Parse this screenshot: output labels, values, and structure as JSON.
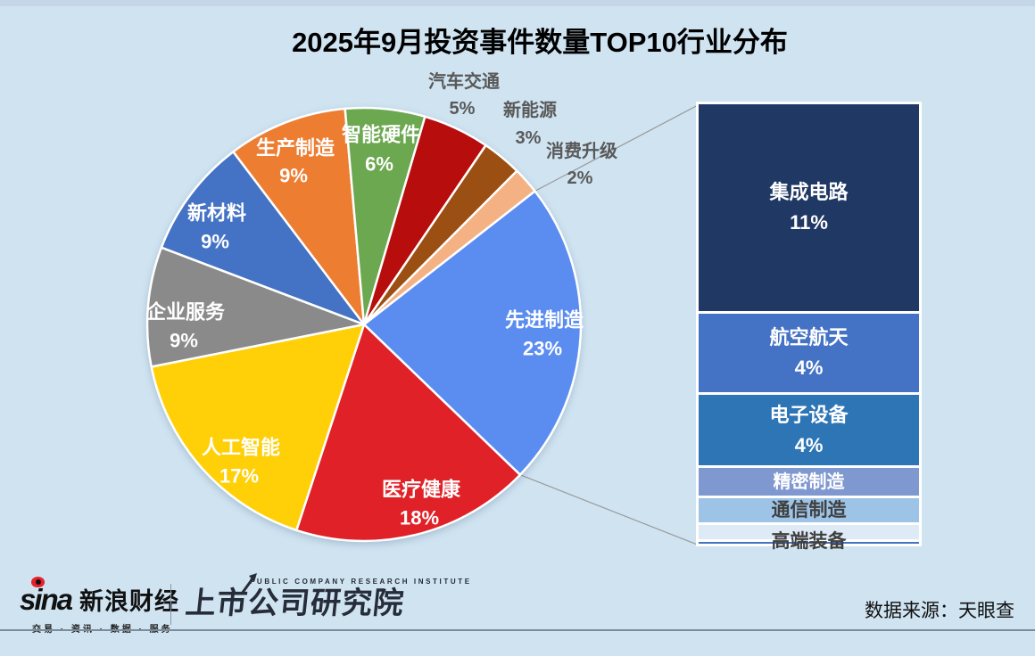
{
  "page": {
    "background": "#CFE3F1"
  },
  "header": {
    "title": "2025年9月投资事件数量TOP10行业分布"
  },
  "chart_data": {
    "type": "pie",
    "subtype": "bar-of-pie",
    "title": "2025年9月投资事件数量TOP10行业分布",
    "unit": "%",
    "legend_position": "none",
    "pie": {
      "start_angle_deg": 52,
      "slices": [
        {
          "label": "先进制造",
          "value": 23,
          "color": "#5B8DF0",
          "label_position": "inside"
        },
        {
          "label": "医疗健康",
          "value": 18,
          "color": "#E02128",
          "label_position": "inside"
        },
        {
          "label": "人工智能",
          "value": 17,
          "color": "#FFD008",
          "label_position": "inside"
        },
        {
          "label": "企业服务",
          "value": 9,
          "color": "#8A8A8A",
          "label_position": "inside"
        },
        {
          "label": "新材料",
          "value": 9,
          "color": "#4472C4",
          "label_position": "inside"
        },
        {
          "label": "生产制造",
          "value": 9,
          "color": "#ED7D31",
          "label_position": "inside"
        },
        {
          "label": "智能硬件",
          "value": 6,
          "color": "#6BA84F",
          "label_position": "inside"
        },
        {
          "label": "汽车交通",
          "value": 5,
          "color": "#B70D0D",
          "label_position": "outside"
        },
        {
          "label": "新能源",
          "value": 3,
          "color": "#9C4F13",
          "label_position": "outside"
        },
        {
          "label": "消费升级",
          "value": 2,
          "color": "#F4B183",
          "label_position": "outside"
        }
      ]
    },
    "breakout_bar": {
      "breakout_of": "先进制造",
      "blocks": [
        {
          "label": "集成电路",
          "display": "11%",
          "value": 11,
          "color": "#203864",
          "text_color": "#FFFFFF"
        },
        {
          "label": "航空航天",
          "display": "4%",
          "value": 4,
          "color": "#4472C4",
          "text_color": "#FFFFFF"
        },
        {
          "label": "电子设备",
          "display": "4%",
          "value": 4,
          "color": "#2E75B6",
          "text_color": "#FFFFFF"
        },
        {
          "label": "精密制造",
          "display": "",
          "value": 2,
          "value_estimated": true,
          "color": "#8098D0",
          "text_color": "#FFFFFF"
        },
        {
          "label": "通信制造",
          "display": "",
          "value": 1,
          "value_estimated": true,
          "color": "#9DC3E6",
          "text_color": "#404040"
        },
        {
          "label": "高端装备",
          "display": "",
          "value": 1,
          "value_estimated": true,
          "color": "#DEEAF6",
          "text_color": "#404040"
        }
      ],
      "baseline_color": "#4472C4"
    },
    "connector_color": "#999999",
    "outside_label_color": "#595959"
  },
  "footer": {
    "sina_logo": {
      "brand": "sina",
      "name": "新浪财经",
      "tagline": "交易 · 资讯 · 数据 · 服务"
    },
    "institute_logo": {
      "subtitle": "PUBLIC COMPANY RESEARCH INSTITUTE",
      "name": "上市公司研究院"
    },
    "source": "数据来源：天眼查"
  }
}
